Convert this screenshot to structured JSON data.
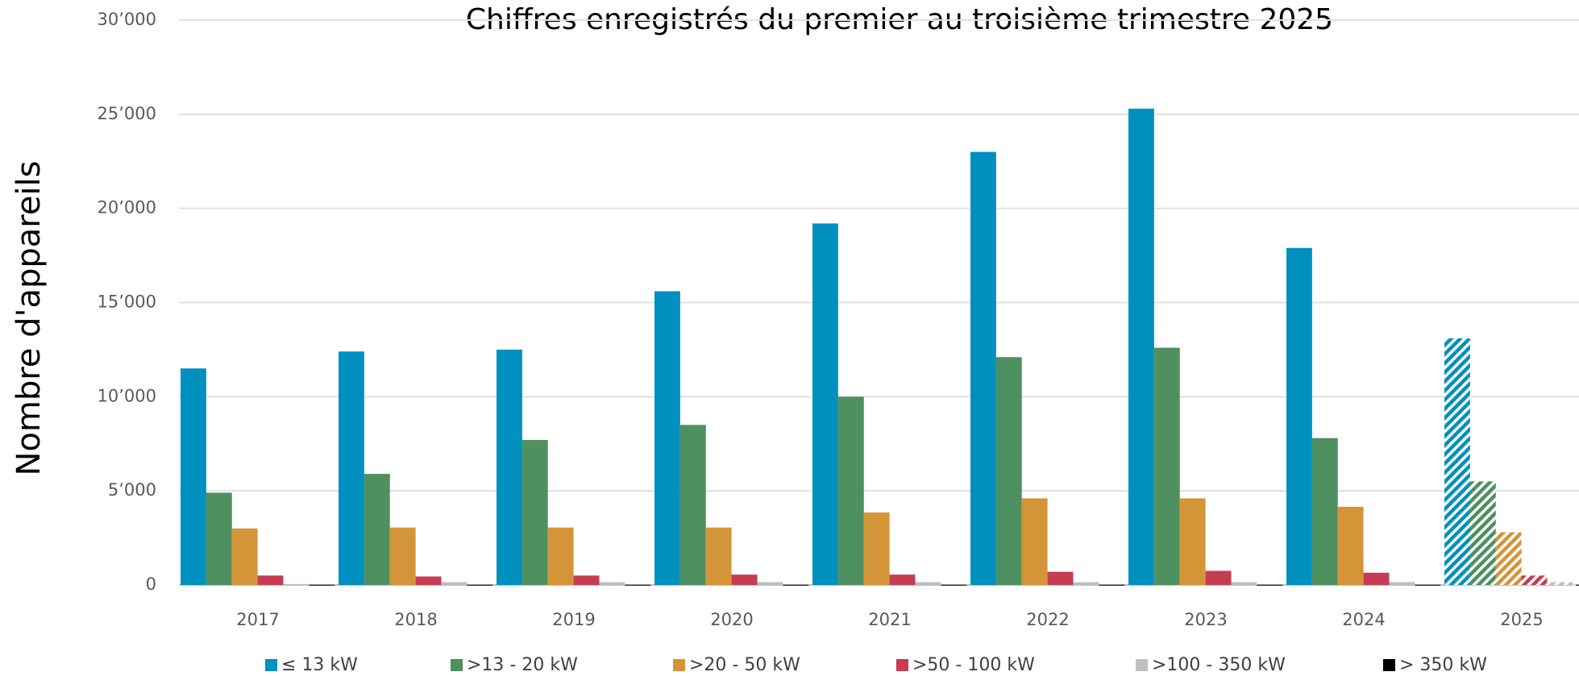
{
  "chart_data": {
    "type": "bar",
    "title": "Chiffres enregistrés du premier au troisième trimestre 2025",
    "y_label": "Nombre d'appareils",
    "categories": [
      "2017",
      "2018",
      "2019",
      "2020",
      "2021",
      "2022",
      "2023",
      "2024",
      "2025"
    ],
    "series": [
      {
        "name": "≤ 13 kW",
        "color": "#0090bf",
        "values": [
          11500,
          12400,
          12500,
          15600,
          19200,
          23000,
          25300,
          17900,
          13100
        ]
      },
      {
        "name": ">13 - 20 kW",
        "color": "#4e9060",
        "values": [
          4900,
          5900,
          7700,
          8500,
          10000,
          12100,
          12600,
          7800,
          5500
        ]
      },
      {
        "name": ">20 - 50 kW",
        "color": "#d49538",
        "values": [
          3000,
          3050,
          3050,
          3050,
          3850,
          4600,
          4600,
          4150,
          2800
        ]
      },
      {
        "name": ">50 - 100 kW",
        "color": "#c63c52",
        "values": [
          500,
          450,
          500,
          550,
          550,
          700,
          750,
          650,
          500
        ]
      },
      {
        "name": ">100 - 350 kW",
        "color": "#bfbfbf",
        "values": [
          50,
          150,
          150,
          150,
          150,
          150,
          150,
          150,
          150
        ]
      },
      {
        "name": "> 350 kW",
        "color": "#000000",
        "values": [
          10,
          10,
          10,
          10,
          10,
          10,
          10,
          10,
          10
        ]
      }
    ],
    "hatched_categories": [
      "2025"
    ],
    "ylim": [
      0,
      30000
    ],
    "yticks": [
      0,
      {
        "value": 5000,
        "label": "5’000"
      },
      {
        "value": 10000,
        "label": "10’000"
      },
      {
        "value": 15000,
        "label": "15’000"
      },
      {
        "value": 20000,
        "label": "20’000"
      },
      {
        "value": 25000,
        "label": "25’000"
      },
      {
        "value": 30000,
        "label": "30’000"
      }
    ],
    "grid": true,
    "legend": "bottom"
  }
}
